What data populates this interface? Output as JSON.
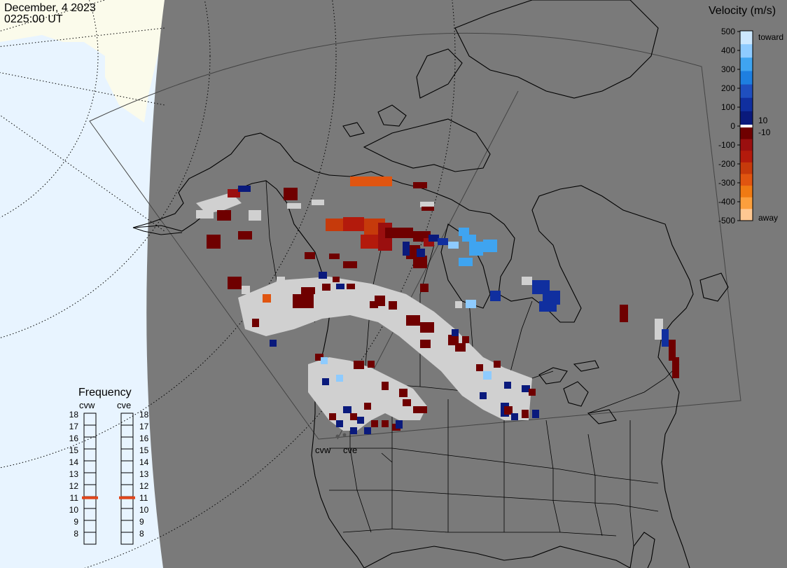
{
  "header": {
    "date": "December, 4 2023",
    "time": "0225:00 UT"
  },
  "colors": {
    "ocean": "#e8f4ff",
    "sea_ice": "#fbfbeb",
    "night_land": "#7a7a7a",
    "coastline": "#000000",
    "gridline": "#000000",
    "ground_scatter": "#d0d0d0"
  },
  "velocity_scale": {
    "title": "Velocity (m/s)",
    "ticks": [
      "500",
      "400",
      "300",
      "200",
      "100",
      "0",
      "-100",
      "-200",
      "-300",
      "-400",
      "-500"
    ],
    "toward_label": "toward",
    "away_label": "away",
    "plus_label": "10",
    "minus_label": "-10",
    "colors": [
      "#cce8ff",
      "#8ecbff",
      "#3fa4f0",
      "#1e7fe0",
      "#1f4fbf",
      "#102f9f",
      "#0a1a7c",
      "#6f0000",
      "#9a0f0f",
      "#b31a0c",
      "#c63a0b",
      "#e05510",
      "#ef7a13",
      "#fb9f3d",
      "#ffc892"
    ]
  },
  "frequency_panel": {
    "title": "Frequency",
    "radars": [
      {
        "code": "cvw",
        "frequency_mhz": 10.9
      },
      {
        "code": "cve",
        "frequency_mhz": 10.9
      }
    ],
    "scale": [
      "18",
      "17",
      "16",
      "15",
      "14",
      "13",
      "12",
      "11",
      "10",
      "9",
      "8"
    ]
  },
  "radar_sites": {
    "labels": [
      "cvw",
      "cve"
    ]
  },
  "map_layers": [
    "night-shading",
    "sea-ice",
    "latitude-grid",
    "radar-fov",
    "coastlines",
    "political-boundaries",
    "velocity-cells",
    "ground-scatter-cells"
  ]
}
